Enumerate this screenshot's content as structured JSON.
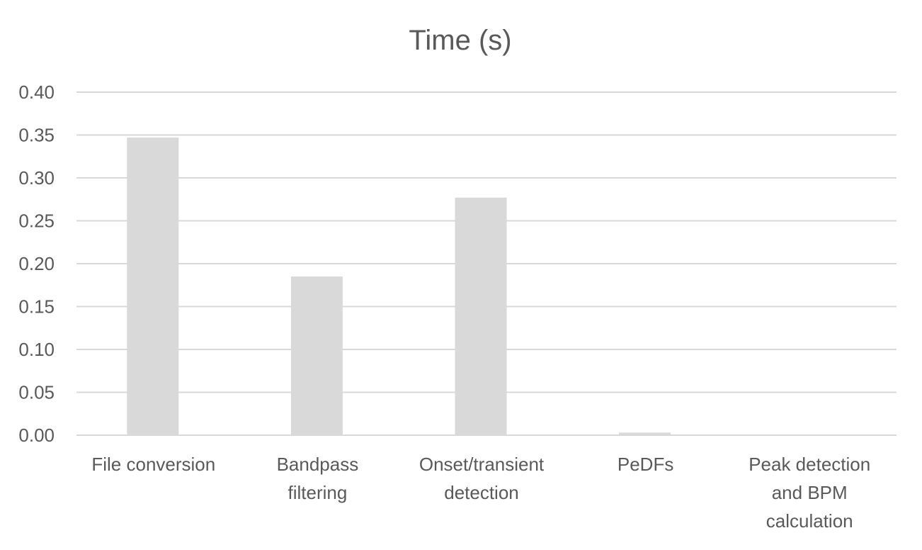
{
  "chart_data": {
    "type": "bar",
    "title": "Time (s)",
    "xlabel": "",
    "ylabel": "",
    "categories": [
      [
        "File conversion"
      ],
      [
        "Bandpass",
        "filtering"
      ],
      [
        "Onset/transient",
        "detection"
      ],
      [
        "PeDFs"
      ],
      [
        "Peak detection",
        "and BPM",
        "calculation"
      ]
    ],
    "values": [
      0.347,
      0.185,
      0.277,
      0.003,
      0.0005
    ],
    "ylim": [
      0,
      0.4
    ],
    "yticks": [
      "0.00",
      "0.05",
      "0.10",
      "0.15",
      "0.20",
      "0.25",
      "0.30",
      "0.35",
      "0.40"
    ],
    "grid": true,
    "legend": "none",
    "bar_color": "#d9d9d9"
  }
}
